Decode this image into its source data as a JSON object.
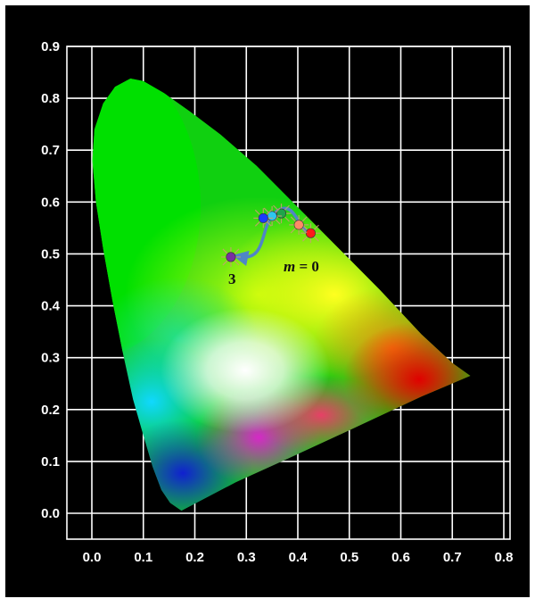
{
  "chart_data": {
    "type": "scatter",
    "xlim": [
      0.0,
      0.8
    ],
    "ylim": [
      0.0,
      0.9
    ],
    "x_ticks": [
      "0.0",
      "0.1",
      "0.2",
      "0.3",
      "0.4",
      "0.5",
      "0.6",
      "0.7",
      "0.8"
    ],
    "y_ticks": [
      "0.0",
      "0.1",
      "0.2",
      "0.3",
      "0.4",
      "0.5",
      "0.6",
      "0.7",
      "0.8",
      "0.9"
    ],
    "grid": true,
    "background": "#000000",
    "grid_color": "#ffffff",
    "points": [
      {
        "x": 0.425,
        "y": 0.54,
        "color": "#ff1a1a"
      },
      {
        "x": 0.402,
        "y": 0.556,
        "color": "#ff8a66"
      },
      {
        "x": 0.368,
        "y": 0.578,
        "color": "#1fa44a"
      },
      {
        "x": 0.35,
        "y": 0.573,
        "color": "#2ec7f0"
      },
      {
        "x": 0.333,
        "y": 0.569,
        "color": "#1a3cff"
      },
      {
        "x": 0.27,
        "y": 0.494,
        "color": "#7a2ea0"
      }
    ],
    "annotations": {
      "start_label": "m = 0",
      "start_var": "m",
      "start_rest": " = 0",
      "end_label": "3"
    },
    "arrow_color": "#4f86c6"
  }
}
